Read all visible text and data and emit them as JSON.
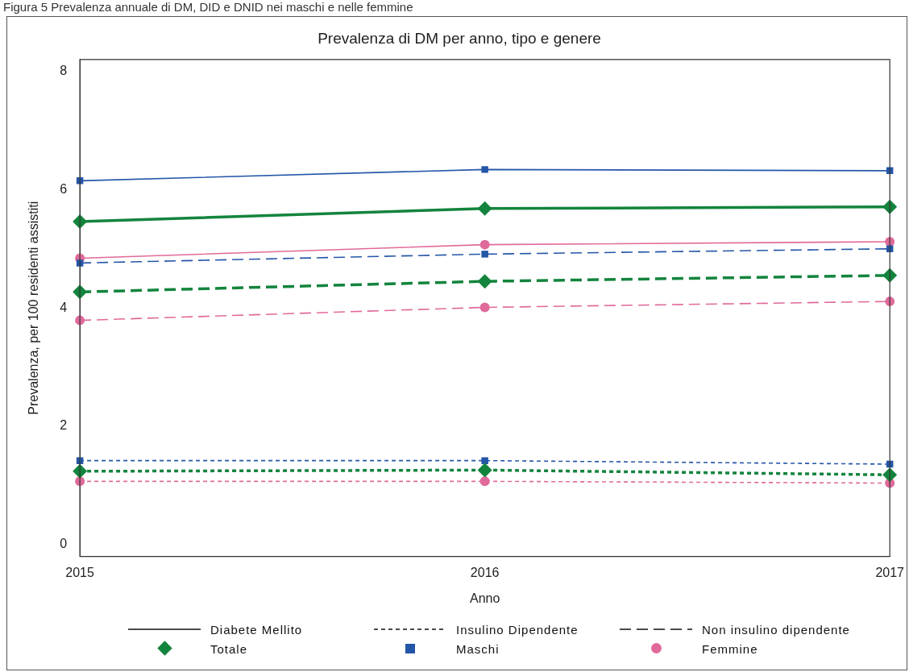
{
  "chart_data": {
    "type": "line",
    "title": "Prevalenza di DM per anno, tipo e genere",
    "xlabel": "Anno",
    "ylabel": "Prevalenza, per 100 residenti assistiti",
    "annotations": [
      "Figura 5 Prevalenza annuale di DM, DID e DNID nei maschi e nelle femmine",
      "Diabete Mellito",
      "Insulino Dipendente",
      "Non insulino dipendente",
      "Totale",
      "Maschi",
      "Femmine"
    ],
    "categories": [
      "2015",
      "2016",
      "2017"
    ],
    "ylim": [
      -0.2,
      8.2
    ],
    "yticks": [
      0,
      2,
      4,
      6,
      8
    ],
    "grid": false,
    "series": [
      {
        "color": "#13843d",
        "marker": "diamond",
        "line_style": "solid",
        "values": [
          5.46,
          5.68,
          5.71
        ]
      },
      {
        "color": "#13843d",
        "marker": "diamond",
        "line_style": "dotted",
        "values": [
          1.24,
          1.26,
          1.18
        ]
      },
      {
        "color": "#13843d",
        "marker": "diamond",
        "line_style": "dashed",
        "values": [
          4.27,
          4.45,
          4.55
        ]
      },
      {
        "color": "#2456a8",
        "marker": "square",
        "line_style": "solid",
        "values": [
          6.15,
          6.34,
          6.32
        ]
      },
      {
        "color": "#2456a8",
        "marker": "square",
        "line_style": "dotted",
        "values": [
          1.42,
          1.42,
          1.36
        ]
      },
      {
        "color": "#2456a8",
        "marker": "square",
        "line_style": "dashed",
        "values": [
          4.76,
          4.91,
          5.0
        ]
      },
      {
        "color": "#e06a9a",
        "marker": "circle",
        "line_style": "solid",
        "values": [
          4.84,
          5.07,
          5.12
        ]
      },
      {
        "color": "#e06a9a",
        "marker": "circle",
        "line_style": "dotted",
        "values": [
          1.07,
          1.07,
          1.04
        ]
      },
      {
        "color": "#e06a9a",
        "marker": "circle",
        "line_style": "dashed",
        "values": [
          3.79,
          4.01,
          4.11
        ]
      }
    ]
  }
}
